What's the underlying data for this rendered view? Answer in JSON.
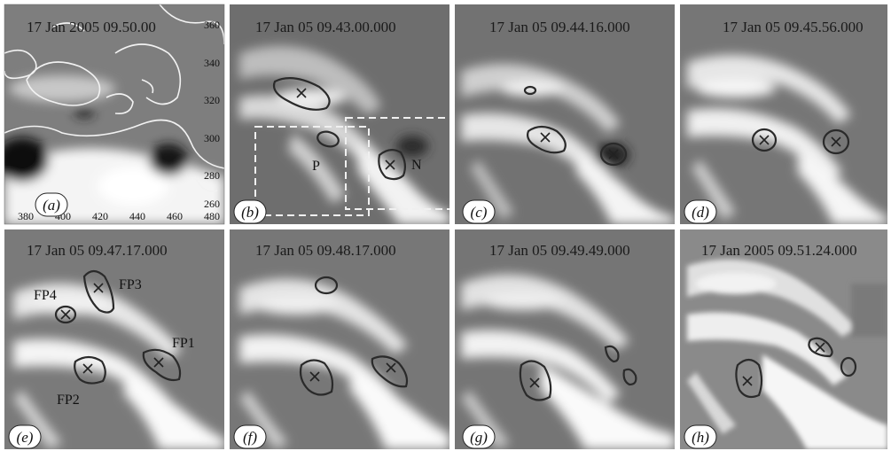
{
  "panels": [
    {
      "id": "a",
      "label": "a",
      "title": "17 Jan 2005 09.50.00"
    },
    {
      "id": "b",
      "label": "b",
      "title": "17 Jan 05 09.43.00.000"
    },
    {
      "id": "c",
      "label": "c",
      "title": "17 Jan 05 09.44.16.000"
    },
    {
      "id": "d",
      "label": "d",
      "title": "17 Jan 05 09.45.56.000"
    },
    {
      "id": "e",
      "label": "e",
      "title": "17 Jan 05 09.47.17.000"
    },
    {
      "id": "f",
      "label": "f",
      "title": "17 Jan 05 09.48.17.000"
    },
    {
      "id": "g",
      "label": "g",
      "title": "17 Jan 05 09.49.49.000"
    },
    {
      "id": "h",
      "label": "h",
      "title": "17 Jan 2005 09.51.24.000"
    }
  ],
  "axes_a": {
    "x_ticks": [
      "380",
      "400",
      "420",
      "440",
      "460",
      "480"
    ],
    "y_ticks": [
      "360",
      "340",
      "320",
      "300",
      "280",
      "260"
    ]
  },
  "annotations_b": {
    "p": "P",
    "n": "N"
  },
  "footpoints_e": {
    "fp1": "FP1",
    "fp2": "FP2",
    "fp3": "FP3",
    "fp4": "FP4"
  },
  "label_wrap": {
    "open": "(",
    "close": ")"
  },
  "colors": {
    "contour": "#2a2a2a",
    "overlay": "#f0f0f0",
    "background": "#777777"
  }
}
